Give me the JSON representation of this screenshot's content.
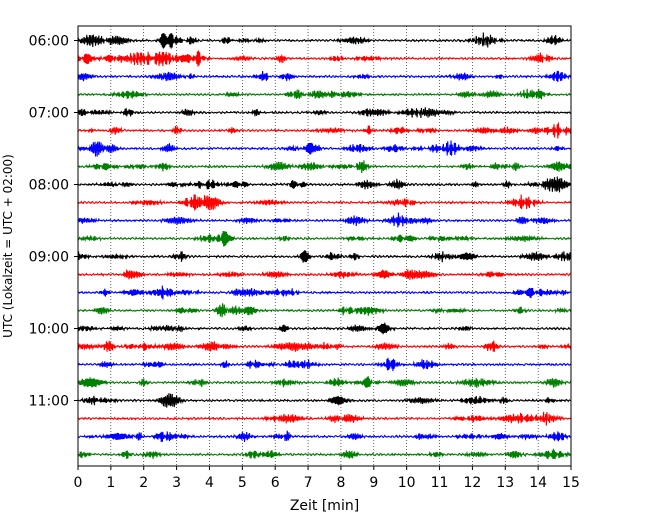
{
  "chart_data": {
    "type": "line",
    "subtype": "seismogram-helicorder",
    "xlabel": "Zeit  [min]",
    "ylabel": "UTC (Lokalzeit = UTC + 02:00)",
    "xlim": [
      0,
      15
    ],
    "x_ticks": [
      0,
      1,
      2,
      3,
      4,
      5,
      6,
      7,
      8,
      9,
      10,
      11,
      12,
      13,
      14,
      15
    ],
    "x_tick_labels": [
      "0",
      "1",
      "2",
      "3",
      "4",
      "5",
      "6",
      "7",
      "8",
      "9",
      "10",
      "11",
      "12",
      "13",
      "14",
      "15"
    ],
    "y_tick_labels": [
      "06:00",
      "07:00",
      "08:00",
      "09:00",
      "10:00",
      "11:00"
    ],
    "y_tick_rows": [
      0,
      4,
      8,
      12,
      16,
      20
    ],
    "grid": {
      "x": true,
      "y": false,
      "style": "dotted"
    },
    "trace_minutes_per_line": 15,
    "trace_count": 24,
    "trace_color_cycle": [
      "#000000",
      "#ff0000",
      "#0000ff",
      "#008000"
    ],
    "trace_start_times": [
      "06:00",
      "06:15",
      "06:30",
      "06:45",
      "07:00",
      "07:15",
      "07:30",
      "07:45",
      "08:00",
      "08:15",
      "08:30",
      "08:45",
      "09:00",
      "09:15",
      "09:30",
      "09:45",
      "10:00",
      "10:15",
      "10:30",
      "10:45",
      "11:00",
      "11:15",
      "11:30",
      "11:45"
    ]
  }
}
